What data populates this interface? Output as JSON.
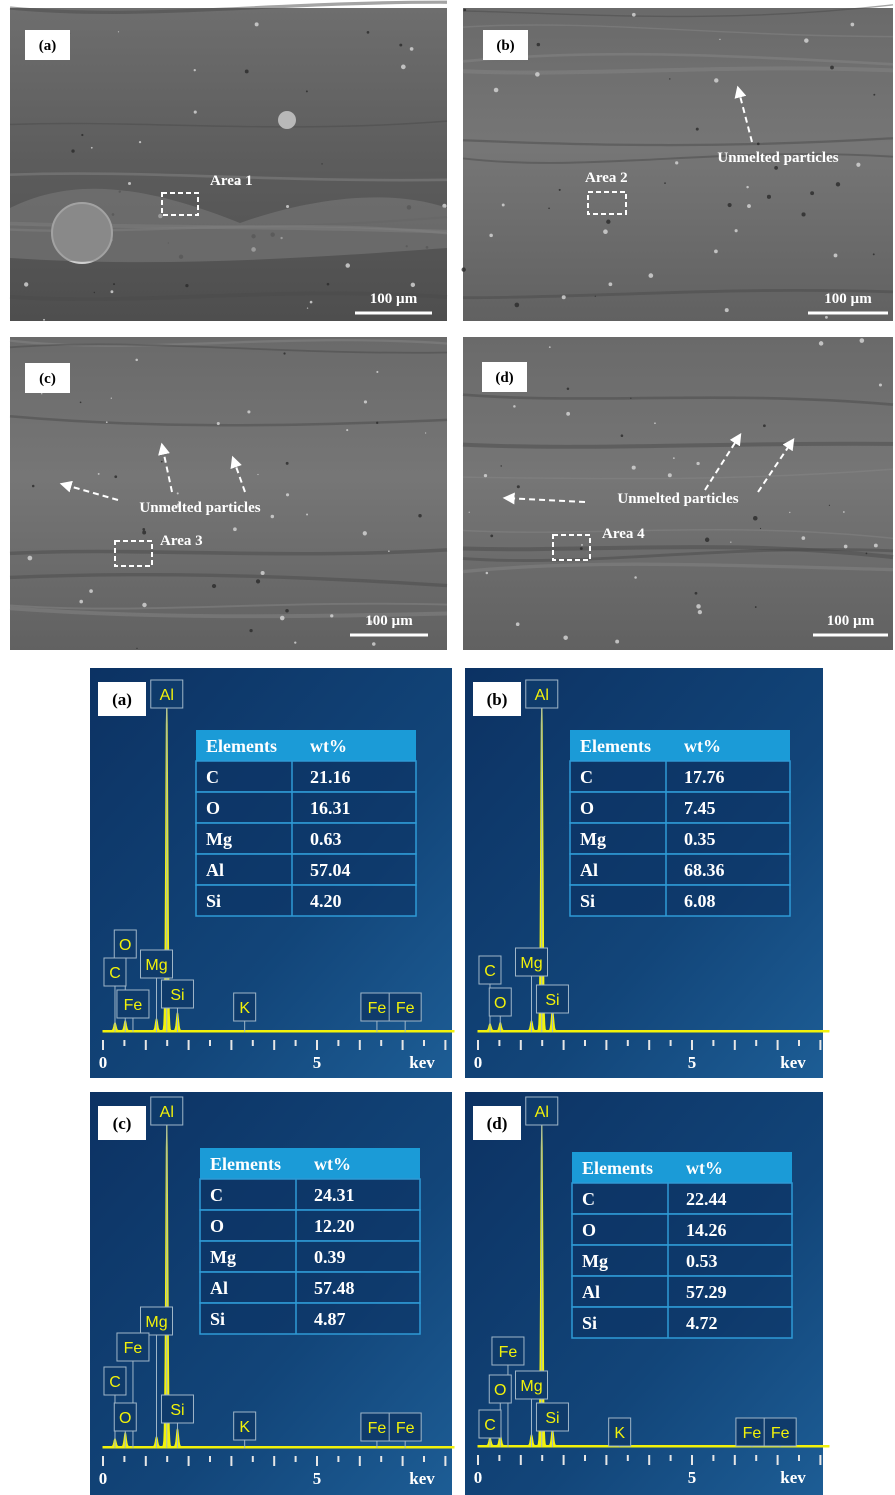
{
  "sem_panels": [
    {
      "label": "(a)",
      "annotations": [
        "Area 1"
      ],
      "scale_bar": "100 µm"
    },
    {
      "label": "(b)",
      "annotations": [
        "Unmelted particles",
        "Area 2"
      ],
      "scale_bar": "100 µm"
    },
    {
      "label": "(c)",
      "annotations": [
        "Unmelted particles",
        "Area 3"
      ],
      "scale_bar": "100 µm"
    },
    {
      "label": "(d)",
      "annotations": [
        "Unmelted particles",
        "Area 4"
      ],
      "scale_bar": "100 µm"
    }
  ],
  "eds_panels": [
    {
      "label": "(a)",
      "table": {
        "header": [
          "Elements",
          "wt%"
        ],
        "rows": [
          [
            "C",
            "21.16"
          ],
          [
            "O",
            "16.31"
          ],
          [
            "Mg",
            "0.63"
          ],
          [
            "Al",
            "57.04"
          ],
          [
            "Si",
            "4.20"
          ]
        ]
      },
      "peaks": [
        "Al",
        "O",
        "C",
        "Mg",
        "Fe",
        "Si",
        "K",
        "Fe",
        "Fe"
      ],
      "axis_labels": [
        "0",
        "5",
        "kev"
      ]
    },
    {
      "label": "(b)",
      "table": {
        "header": [
          "Elements",
          "wt%"
        ],
        "rows": [
          [
            "C",
            "17.76"
          ],
          [
            "O",
            "7.45"
          ],
          [
            "Mg",
            "0.35"
          ],
          [
            "Al",
            "68.36"
          ],
          [
            "Si",
            "6.08"
          ]
        ]
      },
      "peaks": [
        "Al",
        "C",
        "Mg",
        "O",
        "Si"
      ],
      "axis_labels": [
        "0",
        "5",
        "kev"
      ]
    },
    {
      "label": "(c)",
      "table": {
        "header": [
          "Elements",
          "wt%"
        ],
        "rows": [
          [
            "C",
            "24.31"
          ],
          [
            "O",
            "12.20"
          ],
          [
            "Mg",
            "0.39"
          ],
          [
            "Al",
            "57.48"
          ],
          [
            "Si",
            "4.87"
          ]
        ]
      },
      "peaks": [
        "Al",
        "Mg",
        "Fe",
        "C",
        "O",
        "Si",
        "K",
        "Fe",
        "Fe"
      ],
      "axis_labels": [
        "0",
        "5",
        "kev"
      ]
    },
    {
      "label": "(d)",
      "table": {
        "header": [
          "Elements",
          "wt%"
        ],
        "rows": [
          [
            "C",
            "22.44"
          ],
          [
            "O",
            "14.26"
          ],
          [
            "Mg",
            "0.53"
          ],
          [
            "Al",
            "57.29"
          ],
          [
            "Si",
            "4.72"
          ]
        ]
      },
      "peaks": [
        "Al",
        "Fe",
        "O",
        "Mg",
        "C",
        "Si",
        "K",
        "Fe",
        "Fe"
      ],
      "axis_labels": [
        "0",
        "5",
        "kev"
      ]
    }
  ]
}
